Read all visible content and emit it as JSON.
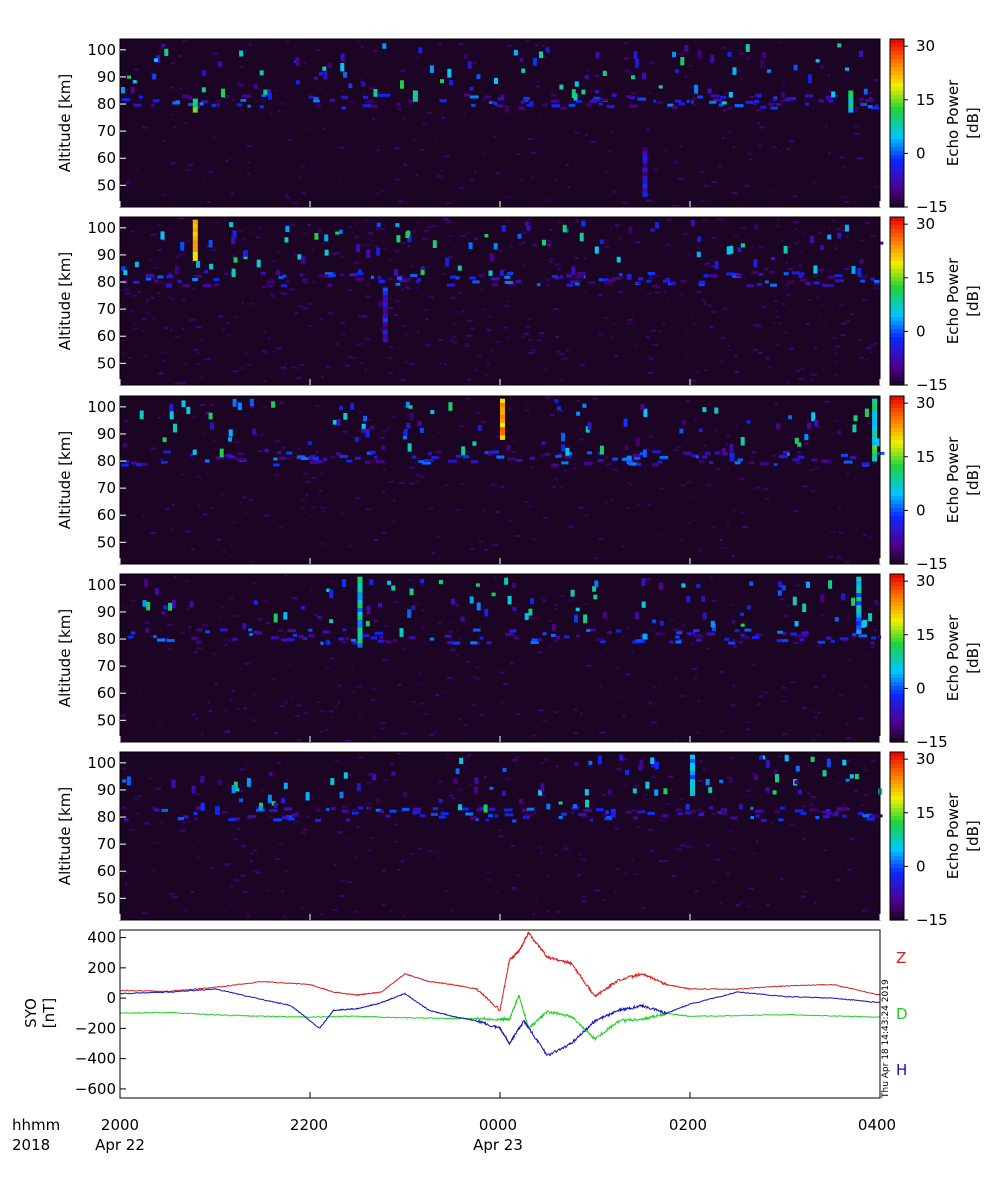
{
  "panels": [
    {
      "ylabel": "Altitude [km]",
      "yticks": [
        "100",
        "90",
        "80",
        "70",
        "60",
        "50"
      ],
      "cbar_label": [
        "Echo Power",
        "[dB]"
      ],
      "cbar_ticks": [
        "30",
        "15",
        "0",
        "−15"
      ]
    },
    {
      "ylabel": "Altitude [km]",
      "yticks": [
        "100",
        "90",
        "80",
        "70",
        "60",
        "50"
      ],
      "cbar_label": [
        "Echo Power",
        "[dB]"
      ],
      "cbar_ticks": [
        "30",
        "15",
        "0",
        "−15"
      ]
    },
    {
      "ylabel": "Altitude [km]",
      "yticks": [
        "100",
        "90",
        "80",
        "70",
        "60",
        "50"
      ],
      "cbar_label": [
        "Echo Power",
        "[dB]"
      ],
      "cbar_ticks": [
        "30",
        "15",
        "0",
        "−15"
      ]
    },
    {
      "ylabel": "Altitude [km]",
      "yticks": [
        "100",
        "90",
        "80",
        "70",
        "60",
        "50"
      ],
      "cbar_label": [
        "Echo Power",
        "[dB]"
      ],
      "cbar_ticks": [
        "30",
        "15",
        "0",
        "−15"
      ]
    },
    {
      "ylabel": "Altitude [km]",
      "yticks": [
        "100",
        "90",
        "80",
        "70",
        "60",
        "50"
      ],
      "cbar_label": [
        "Echo Power",
        "[dB]"
      ],
      "cbar_ticks": [
        "30",
        "15",
        "0",
        "−15"
      ]
    }
  ],
  "mag": {
    "ylabel": [
      "SYO",
      "[nT]"
    ],
    "yticks": [
      "400",
      "200",
      "0",
      "−200",
      "−400",
      "−600"
    ],
    "stamp": "Thu Apr 18 14:43:24 2019"
  },
  "xaxis": {
    "row1": {
      "lead": "hhmm",
      "ticks": [
        "2000",
        "2200",
        "0000",
        "0200",
        "0400"
      ]
    },
    "row2": {
      "lead": "2018",
      "dates": [
        "Apr 22",
        "Apr 23"
      ]
    }
  },
  "colors": {
    "background": "#ffffff",
    "spectrogram_floor": "#1c0524",
    "Z": "#d62020",
    "D": "#1fd01f",
    "H": "#1212b8"
  },
  "chart_data": [
    {
      "type": "heatmap",
      "title": "",
      "xlabel": "hhmm",
      "ylabel": "Altitude [km]",
      "x_range": [
        "2018-04-22 20:00",
        "2018-04-23 04:00"
      ],
      "ylim": [
        42,
        104
      ],
      "colorbar": {
        "label": "Echo Power [dB]",
        "range": [
          -15,
          32
        ],
        "colormap": "rainbow (black-purple-blue-cyan-green-yellow-red)"
      },
      "description_of_echoes": "persistent echo layer near 80-82 km with sporadic bursts 75-103 km",
      "features": [
        {
          "time": "2046",
          "alt_range": [
            77,
            82
          ],
          "power_db": 20
        },
        {
          "time": "2305",
          "alt_range": [
            81,
            85
          ],
          "power_db": 15
        },
        {
          "time": "0130",
          "alt_range": [
            46,
            64
          ],
          "power_db": 0
        },
        {
          "time": "0220",
          "alt_range": [
            80,
            81
          ],
          "power_db": 8
        },
        {
          "time": "0340",
          "alt_range": [
            77,
            85
          ],
          "power_db": 15
        }
      ]
    },
    {
      "type": "heatmap",
      "title": "",
      "xlabel": "hhmm",
      "ylabel": "Altitude [km]",
      "x_range": [
        "2018-04-22 20:00",
        "2018-04-23 04:00"
      ],
      "ylim": [
        42,
        104
      ],
      "colorbar": {
        "label": "Echo Power [dB]",
        "range": [
          -15,
          32
        ]
      },
      "description_of_echoes": "elevated background 22:00-00:00, echo layer near 81 km",
      "features": [
        {
          "time": "2046",
          "alt_range": [
            88,
            103
          ],
          "power_db": 30
        },
        {
          "time": "2246",
          "alt_range": [
            58,
            78
          ],
          "power_db": 0
        },
        {
          "time": "2255",
          "alt_range": [
            81,
            82
          ],
          "power_db": 10
        },
        {
          "time": "0120",
          "alt_range": [
            81,
            83
          ],
          "power_db": 5
        }
      ]
    },
    {
      "type": "heatmap",
      "title": "",
      "xlabel": "hhmm",
      "ylabel": "Altitude [km]",
      "x_range": [
        "2018-04-22 20:00",
        "2018-04-23 04:00"
      ],
      "ylim": [
        42,
        104
      ],
      "colorbar": {
        "label": "Echo Power [dB]",
        "range": [
          -15,
          32
        ]
      },
      "description_of_echoes": "strong echo onset at 00:00 between 80-103 km, layer near 80 km",
      "features": [
        {
          "time": "0000",
          "alt_range": [
            88,
            103
          ],
          "power_db": 30
        },
        {
          "time": "0120",
          "alt_range": [
            79,
            82
          ],
          "power_db": 5
        },
        {
          "time": "0225",
          "alt_range": [
            80,
            83
          ],
          "power_db": 0
        },
        {
          "time": "0355",
          "alt_range": [
            80,
            103
          ],
          "power_db": 15
        }
      ]
    },
    {
      "type": "heatmap",
      "title": "",
      "xlabel": "hhmm",
      "ylabel": "Altitude [km]",
      "x_range": [
        "2018-04-22 20:00",
        "2018-04-23 04:00"
      ],
      "ylim": [
        42,
        104
      ],
      "colorbar": {
        "label": "Echo Power [dB]",
        "range": [
          -15,
          32
        ]
      },
      "description_of_echoes": "echo layer near 81-82 km, strong burst at 22:30",
      "features": [
        {
          "time": "2230",
          "alt_range": [
            77,
            103
          ],
          "power_db": 12
        },
        {
          "time": "0130",
          "alt_range": [
            80,
            82
          ],
          "power_db": 5
        },
        {
          "time": "0345",
          "alt_range": [
            82,
            103
          ],
          "power_db": 10
        }
      ]
    },
    {
      "type": "heatmap",
      "title": "",
      "xlabel": "hhmm",
      "ylabel": "Altitude [km]",
      "x_range": [
        "2018-04-22 20:00",
        "2018-04-23 04:00"
      ],
      "ylim": [
        42,
        104
      ],
      "colorbar": {
        "label": "Echo Power [dB]",
        "range": [
          -15,
          32
        ]
      },
      "description_of_echoes": "echo layer 80-83 km with sporadic upper bursts",
      "features": [
        {
          "time": "2100",
          "alt_range": [
            81,
            84
          ],
          "power_db": 8
        },
        {
          "time": "0110",
          "alt_range": [
            80,
            83
          ],
          "power_db": 8
        },
        {
          "time": "0200",
          "alt_range": [
            88,
            103
          ],
          "power_db": 10
        }
      ]
    },
    {
      "type": "line",
      "title": "",
      "xlabel": "hhmm",
      "ylabel": "SYO [nT]",
      "x_unit": "hours relative to 2018-04-23 00:00",
      "xlim": [
        -4,
        4
      ],
      "ylim": [
        -660,
        450
      ],
      "series": [
        {
          "name": "Z",
          "x": [
            -4.0,
            -3.5,
            -3.0,
            -2.5,
            -2.0,
            -1.75,
            -1.5,
            -1.25,
            -1.0,
            -0.75,
            -0.5,
            -0.25,
            0.0,
            0.1,
            0.2,
            0.3,
            0.5,
            0.75,
            1.0,
            1.25,
            1.5,
            1.75,
            2.0,
            2.5,
            3.0,
            3.5,
            4.0
          ],
          "y": [
            50,
            45,
            70,
            110,
            90,
            40,
            20,
            40,
            160,
            110,
            90,
            60,
            -80,
            250,
            310,
            430,
            270,
            230,
            10,
            120,
            160,
            90,
            60,
            60,
            80,
            90,
            20
          ]
        },
        {
          "name": "D",
          "x": [
            -4.0,
            -3.5,
            -3.0,
            -2.5,
            -2.0,
            -1.5,
            -1.0,
            -0.5,
            -0.25,
            0.0,
            0.1,
            0.2,
            0.3,
            0.5,
            0.75,
            1.0,
            1.25,
            1.5,
            1.75,
            2.0,
            3.0,
            4.0
          ],
          "y": [
            -100,
            -95,
            -110,
            -120,
            -125,
            -120,
            -130,
            -135,
            -135,
            -140,
            -140,
            20,
            -200,
            -90,
            -120,
            -270,
            -150,
            -140,
            -100,
            -120,
            -110,
            -125
          ]
        },
        {
          "name": "H",
          "x": [
            -4.0,
            -3.5,
            -3.0,
            -2.5,
            -2.2,
            -1.9,
            -1.75,
            -1.5,
            -1.25,
            -1.0,
            -0.75,
            -0.5,
            -0.25,
            0.0,
            0.1,
            0.25,
            0.5,
            0.75,
            1.0,
            1.25,
            1.5,
            1.75,
            2.0,
            2.5,
            3.0,
            3.5,
            4.0
          ],
          "y": [
            30,
            40,
            60,
            -10,
            -50,
            -200,
            -80,
            -70,
            -30,
            30,
            -80,
            -120,
            -150,
            -200,
            -300,
            -150,
            -380,
            -300,
            -150,
            -80,
            -50,
            -100,
            -40,
            40,
            10,
            0,
            -30
          ]
        }
      ],
      "legend": [
        "Z",
        "D",
        "H"
      ],
      "legend_placement": "right"
    }
  ]
}
